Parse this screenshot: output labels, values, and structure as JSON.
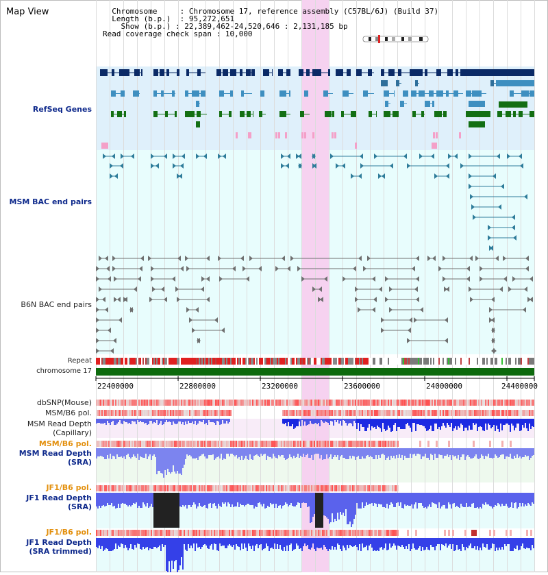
{
  "app": {
    "title": "Map View"
  },
  "info": {
    "chromosome_key": "Chromosome",
    "chromosome_val": ": Chromosome 17, reference assembly (C57BL/6J) (Build 37)",
    "length_key": "Length (b.p.)",
    "length_val": ": 95,272,651",
    "show_key": "Show (b.p.)",
    "show_val": ": 22,389,462-24,520,646 : 2,131,185 bp",
    "read_key": "Read coverage check span",
    "read_val": ": 10,000"
  },
  "tracks": {
    "refseq": "RefSeq Genes",
    "msm_bac": "MSM BAC end pairs",
    "b6n_bac": "B6N BAC end pairs",
    "repeat": "Repeat",
    "chromosome": "chromosome 17",
    "dbsnp": "dbSNP(Mouse)",
    "msm_b6_pol_1": "MSM/B6 pol.",
    "msm_depth_cap_1": "MSM Read Depth",
    "msm_depth_cap_2": "(Capillary)",
    "msm_b6_pol_2": "MSM/B6 pol.",
    "msm_depth_sra_1": "MSM Read Depth",
    "msm_depth_sra_2": "(SRA)",
    "jf1_b6_pol_1": "JF1/B6 pol.",
    "jf1_depth_sra_1": "JF1 Read Depth",
    "jf1_depth_sra_2": "(SRA)",
    "jf1_b6_pol_2": "JF1/B6 pol.",
    "jf1_depth_trim_1": "JF1 Read Depth",
    "jf1_depth_trim_2": "(SRA trimmed)"
  },
  "axis": {
    "ticks": [
      "22400000",
      "22800000",
      "23200000",
      "23600000",
      "24000000",
      "24400000"
    ]
  },
  "colors": {
    "refseq_bg": "#dff0fb",
    "bac_bg": "#e8fdfd",
    "highlight": "#f6d2f0",
    "gene_dark": "#0b2a66",
    "gene_mid": "#3e8fc0",
    "gene_green": "#136f13",
    "chromosome_bar": "#0d6a0d",
    "depth_blue": "#2a35e6",
    "snp_red": "#e85050",
    "label_blue": "#0f2a8c",
    "label_orange": "#e3900e"
  }
}
